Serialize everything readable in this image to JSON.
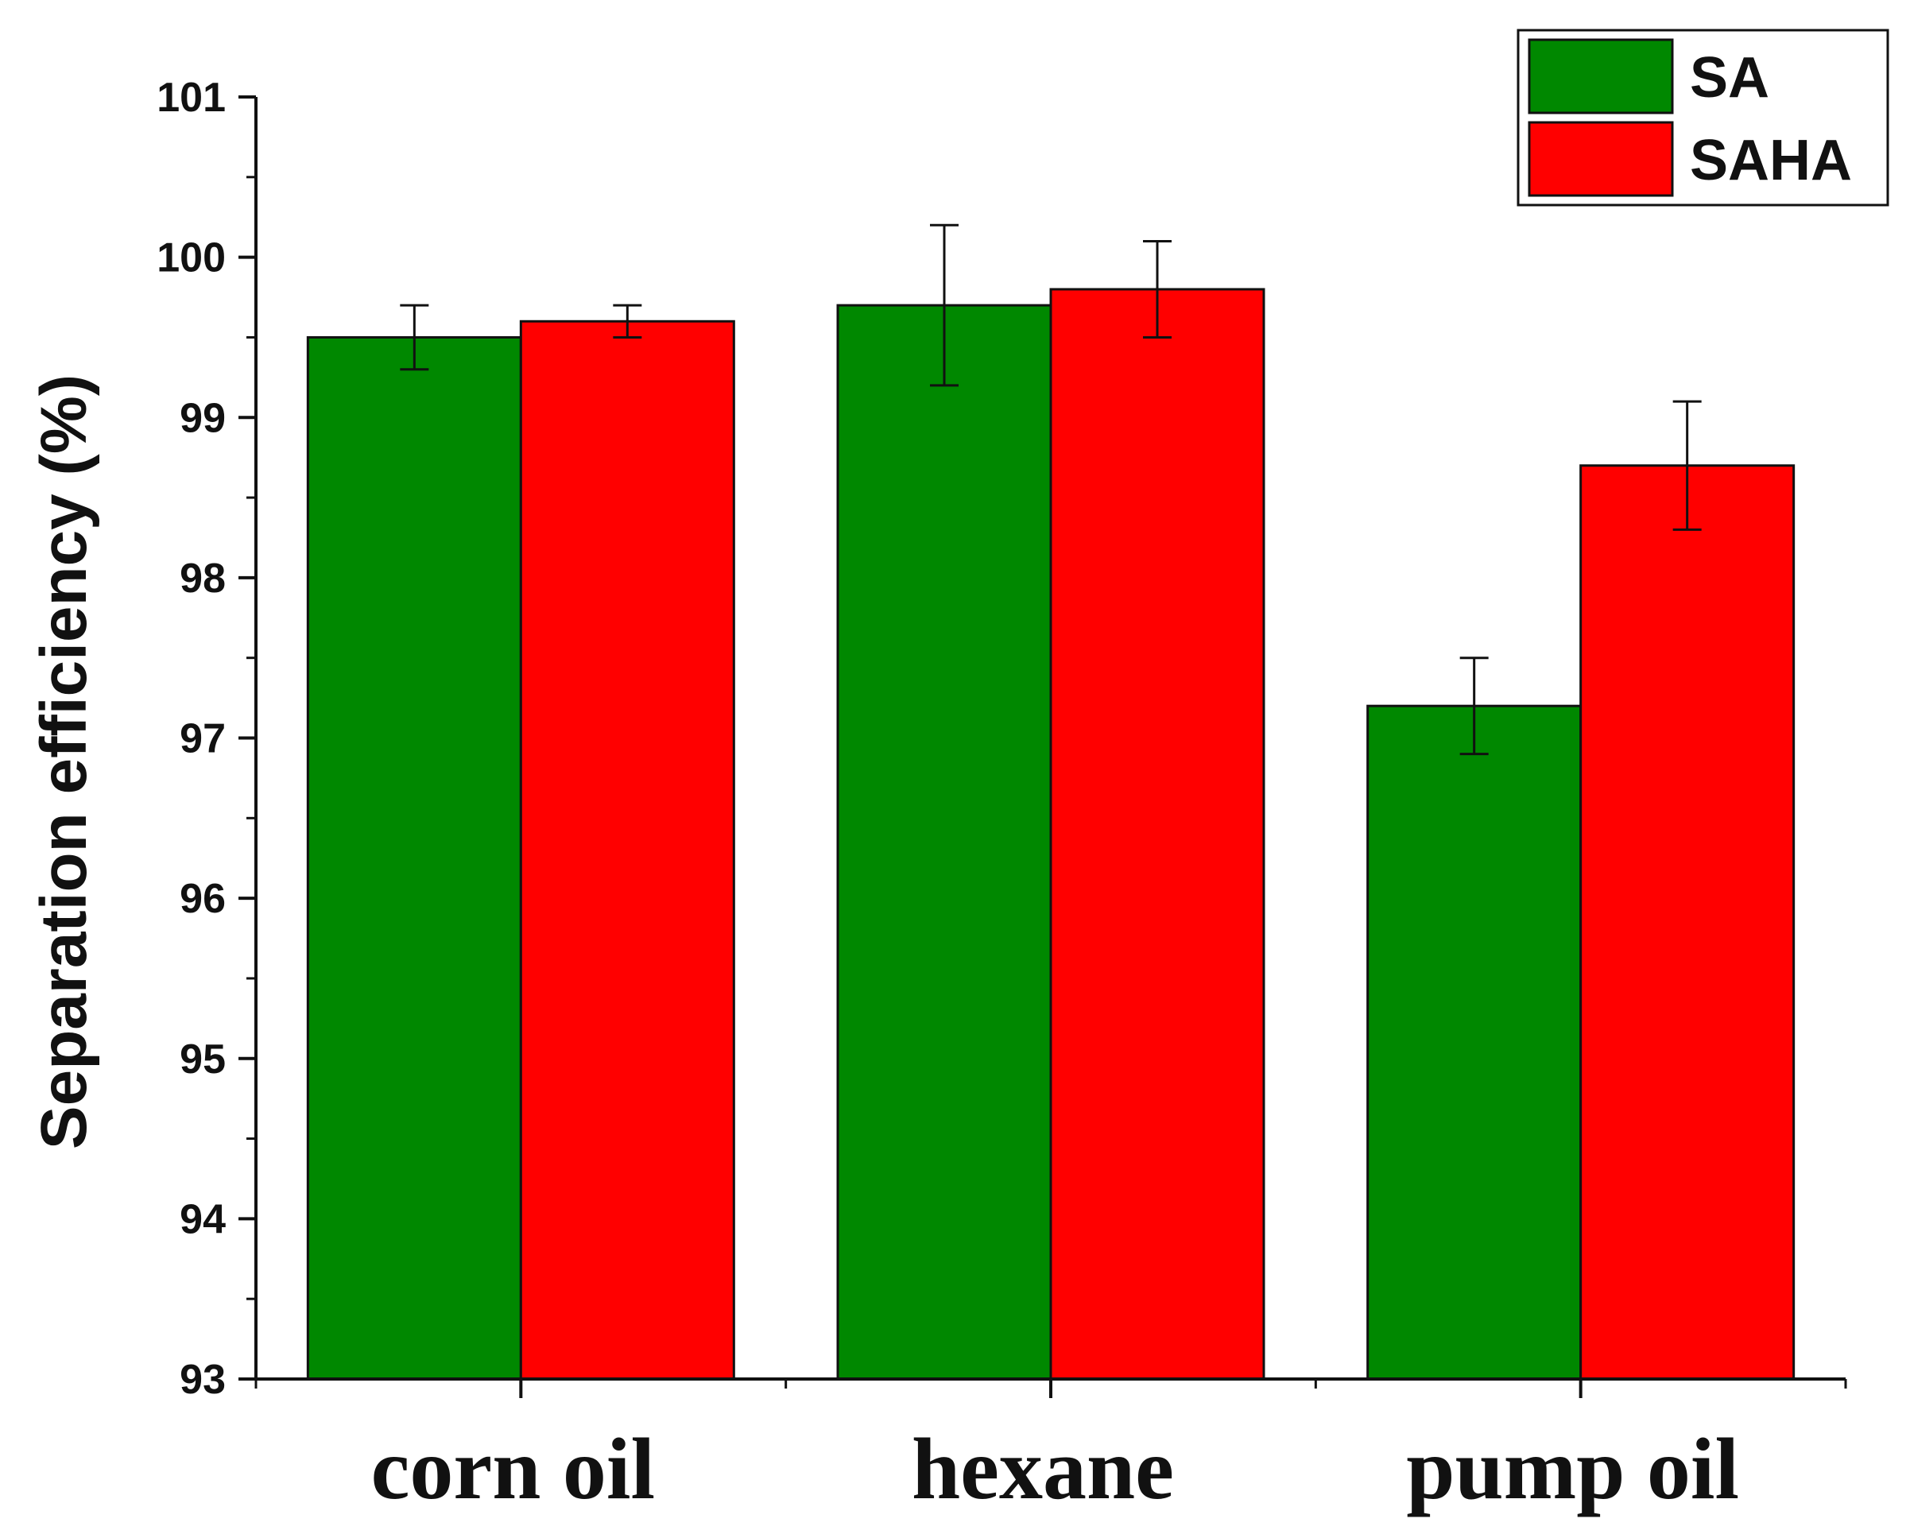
{
  "chart_data": {
    "type": "bar",
    "ylabel": "Separation efficiency (%)",
    "xlabel": "",
    "categories": [
      "corn oil",
      "hexane",
      "pump oil"
    ],
    "ylim": [
      93,
      101
    ],
    "yticks": [
      93,
      94,
      95,
      96,
      97,
      98,
      99,
      100,
      101
    ],
    "legend_position": "top-right",
    "grid": false,
    "series": [
      {
        "name": "SA",
        "color": "#008800",
        "values": [
          99.5,
          99.7,
          97.2
        ],
        "errors": [
          0.2,
          0.5,
          0.3
        ]
      },
      {
        "name": "SAHA",
        "color": "#ff0000",
        "values": [
          99.6,
          99.8,
          98.7
        ],
        "errors": [
          0.1,
          0.3,
          0.4
        ]
      }
    ]
  }
}
